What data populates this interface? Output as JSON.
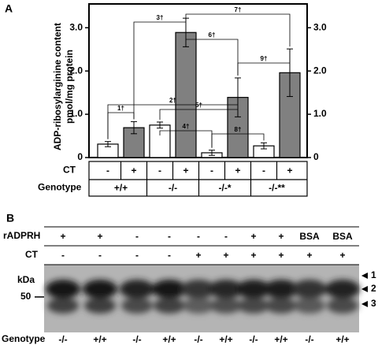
{
  "panel_a_label": "A",
  "chart_data": {
    "type": "bar",
    "y_label": [
      "ADP-ribosylarginine content",
      "pmol/mg protein"
    ],
    "categories": [
      "-",
      "+",
      "-",
      "+",
      "-",
      "+",
      "-",
      "+"
    ],
    "values": [
      0.31,
      0.69,
      0.75,
      2.89,
      0.11,
      1.39,
      0.27,
      1.96
    ],
    "errors": [
      0.06,
      0.14,
      0.07,
      0.33,
      0.06,
      0.45,
      0.07,
      0.55
    ],
    "colors": [
      "#ffffff",
      "#808080",
      "#ffffff",
      "#808080",
      "#ffffff",
      "#808080",
      "#ffffff",
      "#808080"
    ],
    "row_labels": [
      "CT",
      "Genotype"
    ],
    "genotypes": [
      "+/+",
      "-/-",
      "-/-*",
      "-/-**"
    ],
    "ylim": [
      0,
      3.55
    ],
    "yticks": [
      0,
      {
        "value": 1,
        "label": "1.0"
      },
      {
        "value": 2,
        "label": "2.0"
      },
      {
        "value": 3,
        "label": "3.0"
      }
    ],
    "y2lim": [
      0,
      3.55
    ],
    "y2ticks": [
      0,
      {
        "value": 1,
        "label": "1.0"
      },
      {
        "value": 2,
        "label": "2.0"
      },
      {
        "value": 3,
        "label": "3.0"
      }
    ],
    "annotations": [
      "1†",
      "2†",
      "3†",
      "4†",
      "5†",
      "6†",
      "7†",
      "8†",
      "9†"
    ]
  },
  "blot": {
    "panel_label": "B",
    "row_labels": [
      "rADPRH",
      "CT",
      "Genotype"
    ],
    "radprh": [
      "+",
      "+",
      "-",
      "-",
      "-",
      "-",
      "+",
      "+",
      "BSA",
      "BSA"
    ],
    "ct": [
      "-",
      "-",
      "-",
      "-",
      "+",
      "+",
      "+",
      "+",
      "+",
      "+"
    ],
    "genotype": [
      "-/-",
      "+/+",
      "-/-",
      "+/+",
      "-/-",
      "+/+",
      "-/-",
      "+/+",
      "-/-",
      "+/+"
    ],
    "kda_label": "kDa",
    "marker": "50",
    "band_labels": [
      "1",
      "2",
      "3"
    ]
  }
}
